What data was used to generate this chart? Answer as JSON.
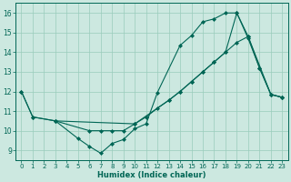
{
  "xlabel": "Humidex (Indice chaleur)",
  "bg_color": "#cce8e0",
  "grid_color": "#99ccbb",
  "line_color": "#006655",
  "xlim": [
    -0.5,
    23.5
  ],
  "ylim": [
    8.5,
    16.5
  ],
  "xticks": [
    0,
    1,
    2,
    3,
    4,
    5,
    6,
    7,
    8,
    9,
    10,
    11,
    12,
    13,
    14,
    15,
    16,
    17,
    18,
    19,
    20,
    21,
    22,
    23
  ],
  "yticks": [
    9,
    10,
    11,
    12,
    13,
    14,
    15,
    16
  ],
  "lines": [
    {
      "x": [
        0,
        1,
        3,
        5,
        6,
        7,
        8,
        9,
        10,
        11,
        12,
        14,
        15,
        16,
        17,
        18,
        19,
        20,
        21,
        22,
        23
      ],
      "y": [
        12,
        10.7,
        10.5,
        9.6,
        9.2,
        8.85,
        9.35,
        9.55,
        10.1,
        10.35,
        11.95,
        14.35,
        14.85,
        15.55,
        15.7,
        16.0,
        16.0,
        14.7,
        13.2,
        11.85,
        11.7
      ]
    },
    {
      "x": [
        0,
        1,
        3,
        10,
        11,
        12,
        13,
        14,
        15,
        16,
        17,
        18,
        19,
        20,
        22,
        23
      ],
      "y": [
        12,
        10.7,
        10.5,
        10.35,
        10.7,
        11.15,
        11.55,
        12.0,
        12.5,
        13.0,
        13.5,
        14.0,
        14.5,
        14.8,
        11.85,
        11.7
      ]
    },
    {
      "x": [
        3,
        6,
        7,
        8,
        9,
        10,
        13,
        14,
        15,
        16,
        17,
        18,
        19,
        20,
        21,
        22,
        23
      ],
      "y": [
        10.5,
        10.0,
        10.0,
        10.0,
        10.0,
        10.35,
        11.55,
        12.0,
        12.5,
        13.0,
        13.5,
        14.0,
        16.0,
        14.8,
        13.2,
        11.85,
        11.7
      ]
    }
  ]
}
